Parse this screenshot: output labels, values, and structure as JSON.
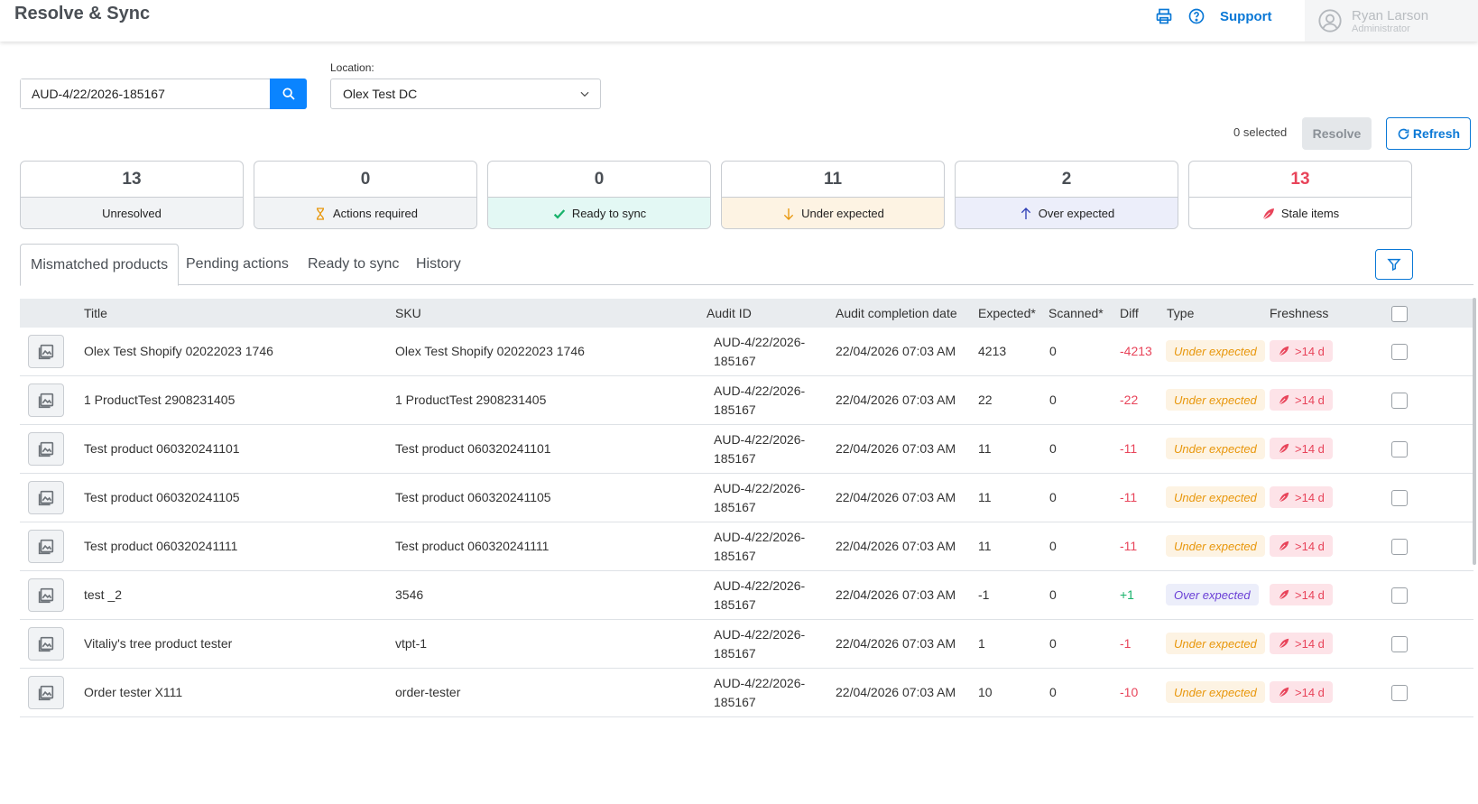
{
  "header": {
    "title": "Resolve & Sync",
    "support_label": "Support",
    "user_name": "Ryan Larson",
    "user_role": "Administrator"
  },
  "search": {
    "value": "AUD-4/22/2026-185167",
    "placeholder": ""
  },
  "location": {
    "label": "Location:",
    "value": "Olex Test DC"
  },
  "actions": {
    "selected_text": "0 selected",
    "resolve_label": "Resolve",
    "refresh_label": "Refresh"
  },
  "cards": [
    {
      "count": "13",
      "label": "Unresolved"
    },
    {
      "count": "0",
      "label": "Actions required"
    },
    {
      "count": "0",
      "label": "Ready to sync"
    },
    {
      "count": "11",
      "label": "Under expected"
    },
    {
      "count": "2",
      "label": "Over expected"
    },
    {
      "count": "13",
      "label": "Stale items"
    }
  ],
  "tabs": [
    "Mismatched products",
    "Pending actions",
    "Ready to sync",
    "History"
  ],
  "table": {
    "columns": [
      "Title",
      "SKU",
      "Audit ID",
      "Audit completion date",
      "Expected*",
      "Scanned*",
      "Diff",
      "Type",
      "Freshness"
    ],
    "rows": [
      {
        "title": "Olex Test Shopify 02022023 1746",
        "sku": "Olex Test Shopify 02022023 1746",
        "audit1": "AUD-4/22/2026-",
        "audit2": "185167",
        "date": "22/04/2026 07:03 AM",
        "expected": "4213",
        "scanned": "0",
        "diff": "-4213",
        "type": "Under expected",
        "freshness": ">14 d"
      },
      {
        "title": "1 ProductTest 2908231405",
        "sku": "1 ProductTest 2908231405",
        "audit1": "AUD-4/22/2026-",
        "audit2": "185167",
        "date": "22/04/2026 07:03 AM",
        "expected": "22",
        "scanned": "0",
        "diff": "-22",
        "type": "Under expected",
        "freshness": ">14 d"
      },
      {
        "title": "Test product 060320241101",
        "sku": "Test product 060320241101",
        "audit1": "AUD-4/22/2026-",
        "audit2": "185167",
        "date": "22/04/2026 07:03 AM",
        "expected": "11",
        "scanned": "0",
        "diff": "-11",
        "type": "Under expected",
        "freshness": ">14 d"
      },
      {
        "title": "Test product 060320241105",
        "sku": "Test product 060320241105",
        "audit1": "AUD-4/22/2026-",
        "audit2": "185167",
        "date": "22/04/2026 07:03 AM",
        "expected": "11",
        "scanned": "0",
        "diff": "-11",
        "type": "Under expected",
        "freshness": ">14 d"
      },
      {
        "title": "Test product 060320241111",
        "sku": "Test product 060320241111",
        "audit1": "AUD-4/22/2026-",
        "audit2": "185167",
        "date": "22/04/2026 07:03 AM",
        "expected": "11",
        "scanned": "0",
        "diff": "-11",
        "type": "Under expected",
        "freshness": ">14 d"
      },
      {
        "title": "test _2",
        "sku": "3546",
        "audit1": "AUD-4/22/2026-",
        "audit2": "185167",
        "date": "22/04/2026 07:03 AM",
        "expected": "-1",
        "scanned": "0",
        "diff": "+1",
        "type": "Over expected",
        "freshness": ">14 d"
      },
      {
        "title": "Vitaliy's tree product tester",
        "sku": "vtpt-1",
        "audit1": "AUD-4/22/2026-",
        "audit2": "185167",
        "date": "22/04/2026 07:03 AM",
        "expected": "1",
        "scanned": "0",
        "diff": "-1",
        "type": "Under expected",
        "freshness": ">14 d"
      },
      {
        "title": "Order tester X111",
        "sku": "order-tester",
        "audit1": "AUD-4/22/2026-",
        "audit2": "185167",
        "date": "22/04/2026 07:03 AM",
        "expected": "10",
        "scanned": "0",
        "diff": "-10",
        "type": "Under expected",
        "freshness": ">14 d"
      }
    ]
  },
  "colors": {
    "accent": "#0a84ff",
    "link": "#0a78d6",
    "negative": "#e8445a",
    "positive": "#18b26b",
    "under_badge": "#e8960a",
    "over_badge": "#6a3fd6"
  },
  "icons": [
    "print-icon",
    "help-icon",
    "user-avatar-icon",
    "search-icon",
    "chevron-down-icon",
    "refresh-icon",
    "hourglass-icon",
    "check-icon",
    "arrow-down-icon",
    "arrow-up-icon",
    "leaf-icon",
    "filter-icon",
    "image-placeholder-icon"
  ]
}
